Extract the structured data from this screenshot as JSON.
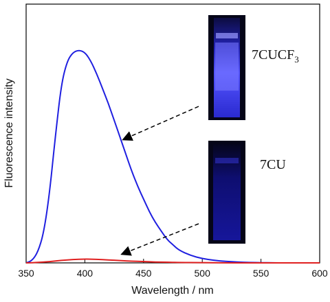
{
  "chart_data": {
    "type": "line",
    "xlabel": "Wavelength / nm",
    "ylabel": "Fluorescence intensity",
    "xlim": [
      350,
      600
    ],
    "ylim": [
      0,
      1.0
    ],
    "x_ticks": [
      350,
      400,
      450,
      500,
      550,
      600
    ],
    "y_ticks_shown": false,
    "grid": false,
    "series": [
      {
        "name": "7CUCF3",
        "color": "#1f1fe0",
        "x": [
          350,
          355,
          360,
          365,
          370,
          375,
          380,
          385,
          390,
          395,
          400,
          405,
          410,
          415,
          420,
          425,
          430,
          435,
          440,
          445,
          450,
          455,
          460,
          465,
          470,
          475,
          480,
          490,
          500,
          510,
          520,
          530,
          540,
          550,
          560,
          570,
          580,
          590,
          600
        ],
        "y": [
          0.0,
          0.01,
          0.05,
          0.14,
          0.33,
          0.6,
          0.84,
          0.95,
          0.99,
          1.0,
          0.99,
          0.95,
          0.89,
          0.82,
          0.75,
          0.67,
          0.59,
          0.51,
          0.43,
          0.36,
          0.3,
          0.24,
          0.19,
          0.15,
          0.11,
          0.085,
          0.06,
          0.035,
          0.02,
          0.012,
          0.007,
          0.004,
          0.002,
          0.001,
          0.0,
          0.0,
          0.0,
          0.0,
          0.0
        ]
      },
      {
        "name": "7CU",
        "color": "#e01f1f",
        "x": [
          350,
          360,
          370,
          380,
          390,
          400,
          410,
          420,
          430,
          440,
          450,
          460,
          470,
          480,
          500,
          520,
          550,
          600
        ],
        "y": [
          0.0,
          0.002,
          0.006,
          0.012,
          0.016,
          0.018,
          0.017,
          0.014,
          0.011,
          0.008,
          0.006,
          0.004,
          0.003,
          0.002,
          0.001,
          0.0,
          0.0,
          0.0
        ]
      }
    ],
    "annotations": [
      {
        "text_main": "7CUCF",
        "text_sub": "3",
        "target_series": "7CUCF3"
      },
      {
        "text_main": "7CU",
        "target_series": "7CU"
      }
    ]
  },
  "colors": {
    "cuvette_bright_glow": "#6a6aff",
    "cuvette_dim_glow": "#1a1ab8",
    "cuvette_background": "#050518",
    "arrow": "#000000"
  }
}
